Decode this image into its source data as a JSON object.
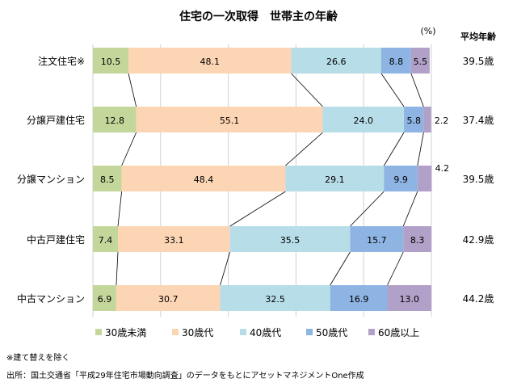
{
  "chart_data": {
    "type": "bar",
    "orientation": "horizontal",
    "stacked": "100%",
    "title": "住宅の一次取得　世帯主の年齢",
    "unit_label": "(%)",
    "categories": [
      "注文住宅※",
      "分譲戸建住宅",
      "分譲マンション",
      "中古戸建住宅",
      "中古マンション"
    ],
    "series": [
      {
        "name": "30歳未満",
        "color": "#c4d79b",
        "values": [
          10.5,
          12.8,
          8.5,
          7.4,
          6.9
        ]
      },
      {
        "name": "30歳代",
        "color": "#fcd5b4",
        "values": [
          48.1,
          55.1,
          48.4,
          33.1,
          30.7
        ]
      },
      {
        "name": "40歳代",
        "color": "#b7dde8",
        "values": [
          26.6,
          24.0,
          29.1,
          35.5,
          32.5
        ]
      },
      {
        "name": "50歳代",
        "color": "#8db4e2",
        "values": [
          8.8,
          5.8,
          9.9,
          15.7,
          16.9
        ]
      },
      {
        "name": "60歳以上",
        "color": "#b1a0c7",
        "values": [
          5.5,
          2.2,
          4.2,
          8.3,
          13.0
        ]
      }
    ],
    "xlim": [
      0,
      100
    ],
    "grid": true,
    "series_lines": true,
    "legend_position": "bottom",
    "side_column": {
      "header": "平均年齢",
      "values": [
        "39.5歳",
        "37.4歳",
        "39.5歳",
        "42.9歳",
        "44.2歳"
      ]
    }
  },
  "notes": {
    "footnote": "※建て替えを除く",
    "source": "出所：国土交通省「平成29年住宅市場動向調査」のデータをもとにアセットマネジメントOne作成"
  }
}
